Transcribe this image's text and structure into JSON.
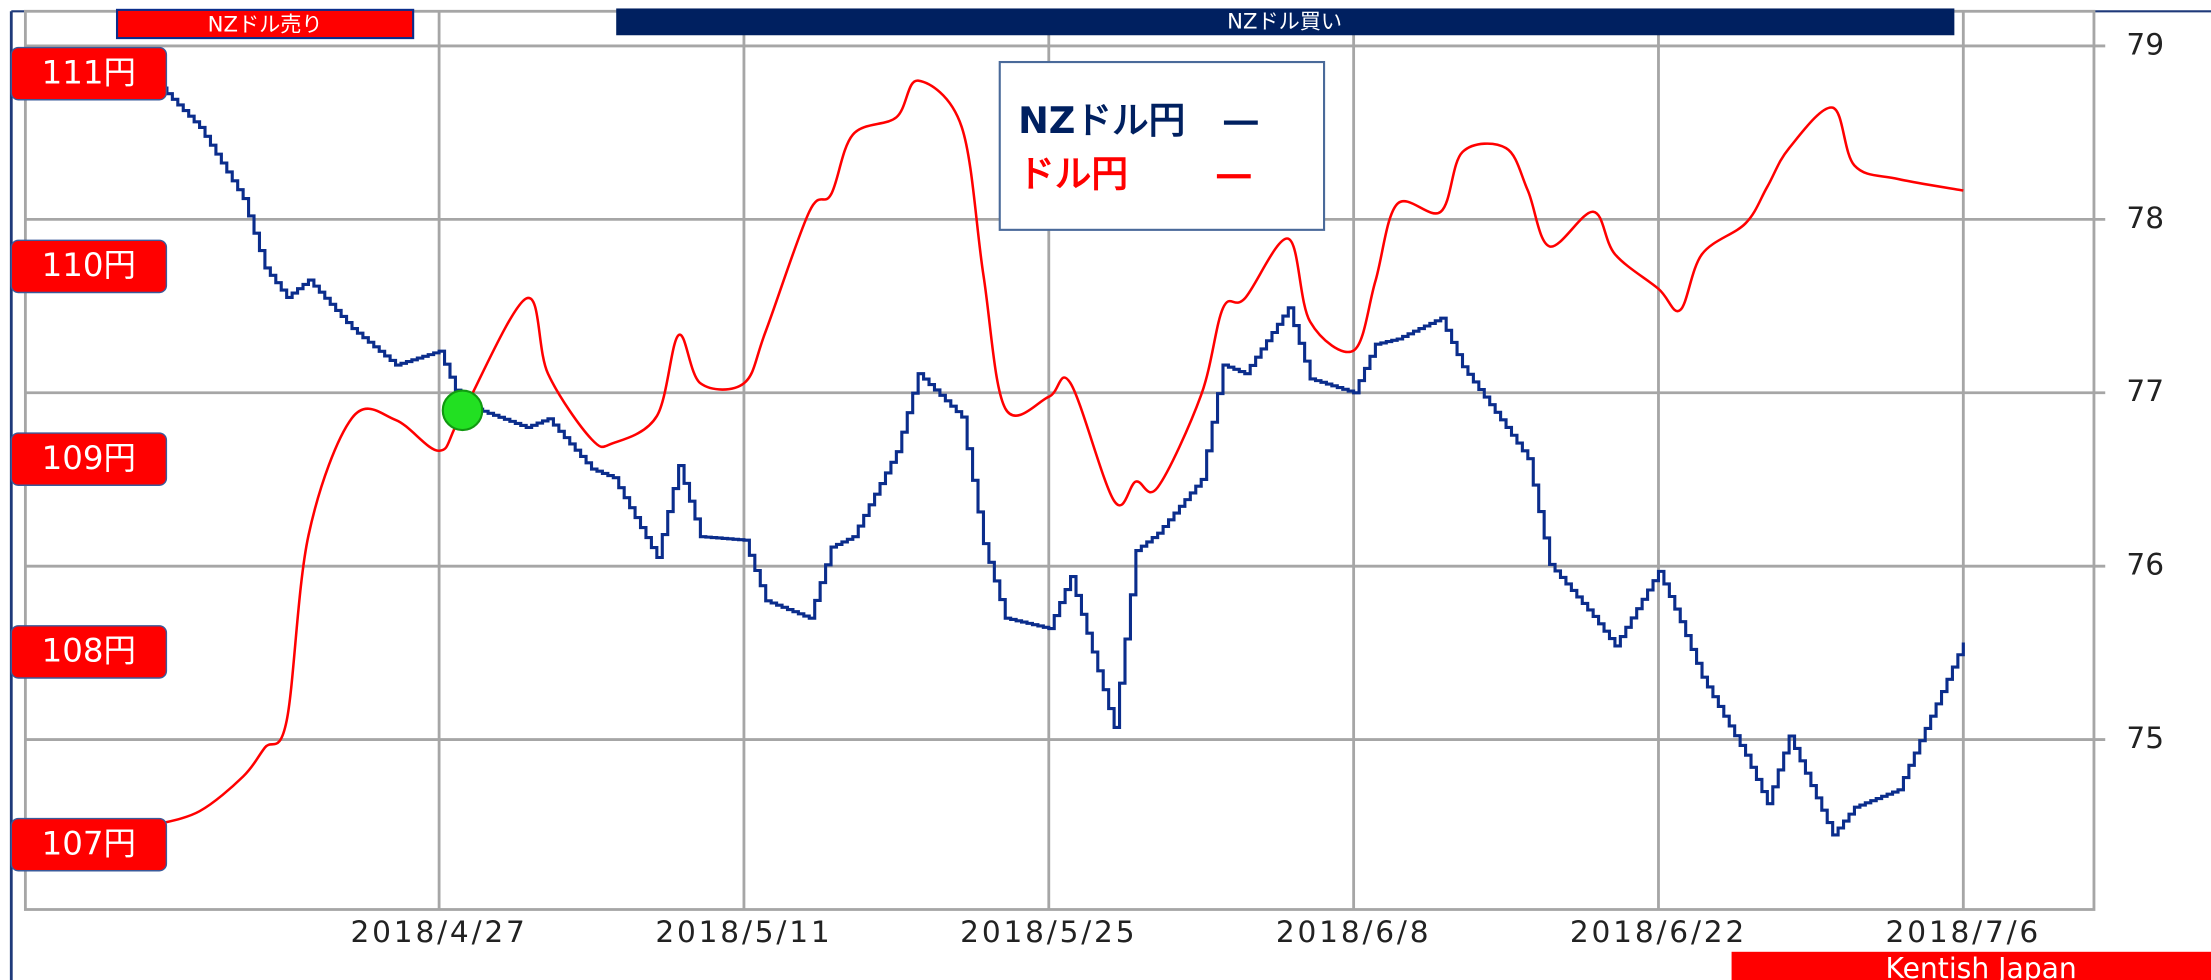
{
  "chart_data": {
    "type": "line",
    "banners": {
      "sell": "NZドル売り",
      "buy": "NZドル買い"
    },
    "footer": "Kentish Japan",
    "x": [
      "2018-04-14",
      "2018-04-16",
      "2018-04-18",
      "2018-04-19",
      "2018-04-20",
      "2018-04-21",
      "2018-04-23",
      "2018-04-25",
      "2018-04-27",
      "2018-04-28",
      "2018-05-01",
      "2018-05-02",
      "2018-05-04",
      "2018-05-05",
      "2018-05-07",
      "2018-05-08",
      "2018-05-09",
      "2018-05-11",
      "2018-05-12",
      "2018-05-14",
      "2018-05-15",
      "2018-05-16",
      "2018-05-18",
      "2018-05-19",
      "2018-05-21",
      "2018-05-22",
      "2018-05-23",
      "2018-05-25",
      "2018-05-26",
      "2018-05-28",
      "2018-05-29",
      "2018-05-30",
      "2018-06-01",
      "2018-06-02",
      "2018-06-03",
      "2018-06-05",
      "2018-06-06",
      "2018-06-08",
      "2018-06-09",
      "2018-06-10",
      "2018-06-12",
      "2018-06-13",
      "2018-06-15",
      "2018-06-16",
      "2018-06-17",
      "2018-06-19",
      "2018-06-20",
      "2018-06-22",
      "2018-06-23",
      "2018-06-24",
      "2018-06-26",
      "2018-06-27",
      "2018-06-28",
      "2018-06-30",
      "2018-07-01",
      "2018-07-03",
      "2018-07-06"
    ],
    "series": [
      {
        "name": "NZドル円",
        "color": "#0b2d8c",
        "axis": "y2",
        "step": true,
        "values": [
          78.79,
          78.53,
          78.12,
          77.72,
          77.55,
          77.65,
          77.37,
          77.16,
          77.24,
          76.94,
          76.8,
          76.85,
          76.56,
          76.51,
          76.05,
          76.58,
          76.17,
          76.15,
          75.8,
          75.7,
          76.11,
          76.17,
          76.66,
          77.11,
          76.86,
          76.13,
          75.7,
          75.64,
          75.94,
          75.07,
          76.09,
          76.19,
          76.5,
          77.16,
          77.11,
          77.49,
          77.08,
          77.0,
          77.28,
          77.31,
          77.43,
          77.15,
          76.8,
          76.62,
          76.01,
          75.71,
          75.54,
          75.97,
          75.68,
          75.36,
          74.91,
          74.63,
          75.02,
          74.45,
          74.61,
          74.71,
          75.56
        ]
      },
      {
        "name": "ドル円",
        "color": "#ff0000",
        "axis": "y",
        "values": [
          107.1,
          107.17,
          107.35,
          107.5,
          107.64,
          108.6,
          109.21,
          109.2,
          109.04,
          109.22,
          109.83,
          109.44,
          109.1,
          109.08,
          109.22,
          109.64,
          109.39,
          109.39,
          109.66,
          110.28,
          110.37,
          110.68,
          110.77,
          110.96,
          110.72,
          109.95,
          109.26,
          109.32,
          109.39,
          108.78,
          108.88,
          108.85,
          109.33,
          109.78,
          109.83,
          110.14,
          109.71,
          109.56,
          109.92,
          110.32,
          110.28,
          110.59,
          110.61,
          110.39,
          110.1,
          110.28,
          110.06,
          109.88,
          109.77,
          110.06,
          110.22,
          110.41,
          110.61,
          110.82,
          110.52,
          110.45,
          110.39
        ]
      }
    ],
    "xlim": [
      "2018-04-08",
      "2018-07-12"
    ],
    "xticks": [
      {
        "value": "2018-04-27",
        "label": "2018/4/27"
      },
      {
        "value": "2018-05-11",
        "label": "2018/5/11"
      },
      {
        "value": "2018-05-25",
        "label": "2018/5/25"
      },
      {
        "value": "2018-06-08",
        "label": "2018/6/8"
      },
      {
        "value": "2018-06-22",
        "label": "2018/6/22"
      },
      {
        "value": "2018-07-06",
        "label": "2018/7/6"
      }
    ],
    "ylim": [
      106.66,
      111.32
    ],
    "yticks": [
      {
        "value": 111,
        "label": "111円"
      },
      {
        "value": 110,
        "label": "110円"
      },
      {
        "value": 109,
        "label": "109円"
      },
      {
        "value": 108,
        "label": "108円"
      },
      {
        "value": 107,
        "label": "107円"
      }
    ],
    "y2lim": [
      74.02,
      79.2
    ],
    "y2ticks": [
      75,
      76,
      77,
      78,
      79
    ],
    "grid": true
  }
}
